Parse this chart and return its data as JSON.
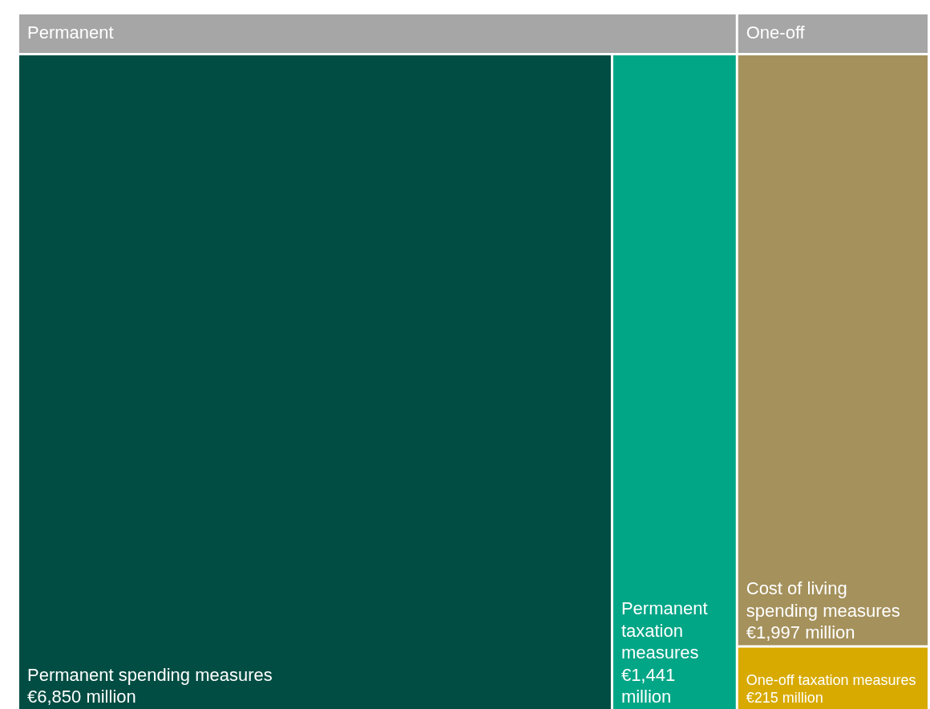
{
  "chart_data": {
    "type": "other",
    "categories": [
      "Permanent spending measures",
      "Permanent taxation measures",
      "Cost of living spending measures",
      "One-off taxation measures"
    ],
    "annotations": [
      "Permanent",
      "One-off"
    ],
    "series": [
      {
        "color": "#a6a6a6",
        "colors": [
          "#014d43",
          "#00a686",
          null,
          null
        ],
        "values": [
          6850,
          1441,
          null,
          null
        ],
        "value_labels": [
          "€6,850 million",
          "€1,441 million",
          null,
          null
        ]
      },
      {
        "color": "#a6a6a6",
        "colors": [
          null,
          null,
          "#a5915c",
          "#d8aa00"
        ],
        "values": [
          null,
          null,
          1997,
          215
        ],
        "value_labels": [
          null,
          null,
          "€1,997 million",
          "€215 million"
        ]
      }
    ]
  }
}
